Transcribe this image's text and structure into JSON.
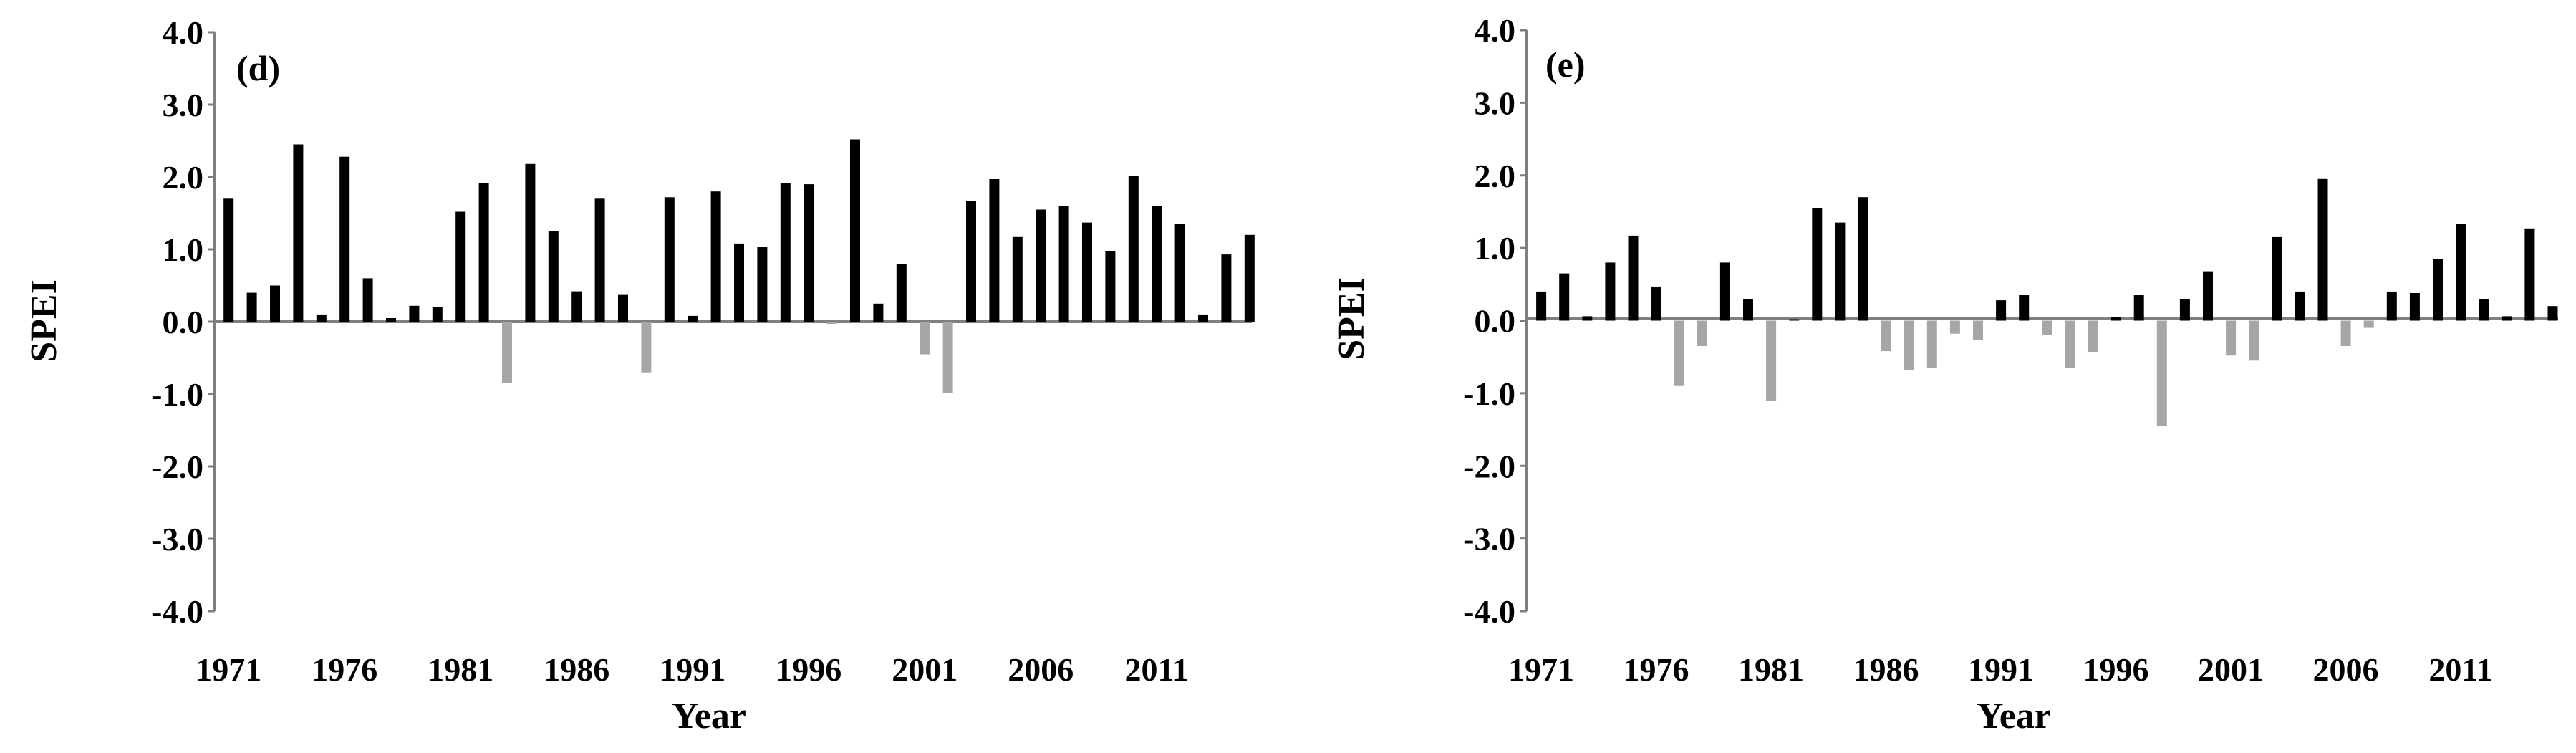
{
  "chart_data": [
    {
      "type": "bar",
      "panel_label": "(d)",
      "xlabel": "Year",
      "ylabel": "SPEI",
      "ylim": [
        -4.0,
        4.0
      ],
      "yticks": [
        "4.0",
        "3.0",
        "2.0",
        "1.0",
        "0.0",
        "-1.0",
        "-2.0",
        "-3.0",
        "-4.0"
      ],
      "xticks": [
        "1971",
        "1976",
        "1981",
        "1986",
        "1991",
        "1996",
        "2001",
        "2006",
        "2011"
      ],
      "grid": false,
      "legend": "none",
      "positive_color": "#000000",
      "negative_color": "#a6a6a6",
      "years": [
        1971,
        1972,
        1973,
        1974,
        1975,
        1976,
        1977,
        1978,
        1979,
        1980,
        1981,
        1982,
        1983,
        1984,
        1985,
        1986,
        1987,
        1988,
        1989,
        1990,
        1991,
        1992,
        1993,
        1994,
        1995,
        1996,
        1997,
        1998,
        1999,
        2000,
        2001,
        2002,
        2003,
        2004,
        2005,
        2006,
        2007,
        2008,
        2009,
        2010,
        2011,
        2012,
        2013,
        2014,
        2015
      ],
      "values": [
        1.7,
        0.4,
        0.5,
        2.45,
        0.1,
        2.28,
        0.6,
        0.05,
        0.22,
        0.2,
        1.52,
        1.92,
        -0.85,
        2.18,
        1.25,
        0.42,
        1.7,
        0.37,
        -0.7,
        1.72,
        0.08,
        1.8,
        1.08,
        1.03,
        1.92,
        1.9,
        -0.03,
        2.52,
        0.25,
        0.8,
        -0.45,
        -0.98,
        1.67,
        1.97,
        1.17,
        1.55,
        1.6,
        1.37,
        0.97,
        2.02,
        1.6,
        1.35,
        0.1,
        0.93,
        1.2
      ]
    },
    {
      "type": "bar",
      "panel_label": "(e)",
      "xlabel": "Year",
      "ylabel": "SPEI",
      "ylim": [
        -4.0,
        4.0
      ],
      "yticks": [
        "4.0",
        "3.0",
        "2.0",
        "1.0",
        "0.0",
        "-1.0",
        "-2.0",
        "-3.0",
        "-4.0"
      ],
      "xticks": [
        "1971",
        "1976",
        "1981",
        "1986",
        "1991",
        "1996",
        "2001",
        "2006",
        "2011"
      ],
      "grid": false,
      "legend": "none",
      "positive_color": "#000000",
      "negative_color": "#a6a6a6",
      "years": [
        1971,
        1972,
        1973,
        1974,
        1975,
        1976,
        1977,
        1978,
        1979,
        1980,
        1981,
        1982,
        1983,
        1984,
        1985,
        1986,
        1987,
        1988,
        1989,
        1990,
        1991,
        1992,
        1993,
        1994,
        1995,
        1996,
        1997,
        1998,
        1999,
        2000,
        2001,
        2002,
        2003,
        2004,
        2005,
        2006,
        2007,
        2008,
        2009,
        2010,
        2011,
        2012,
        2013,
        2014,
        2015
      ],
      "values": [
        0.4,
        0.65,
        0.06,
        0.8,
        1.17,
        0.47,
        -0.9,
        -0.35,
        0.8,
        0.3,
        -1.1,
        0.02,
        1.55,
        1.35,
        1.7,
        -0.42,
        -0.68,
        -0.65,
        -0.18,
        -0.27,
        0.28,
        0.35,
        -0.2,
        -0.65,
        -0.43,
        0.05,
        0.35,
        -1.45,
        0.3,
        0.68,
        -0.48,
        -0.55,
        1.15,
        0.4,
        1.95,
        -0.35,
        -0.1,
        0.4,
        0.38,
        0.85,
        1.33,
        0.3,
        0.06,
        1.27,
        0.2
      ]
    }
  ]
}
